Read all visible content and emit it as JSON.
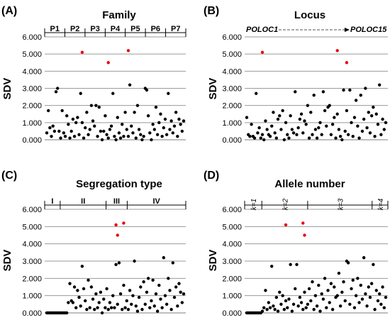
{
  "chart_data": [
    {
      "type": "scatter",
      "panel": "(A)",
      "title": "Family",
      "ylabel": "SDV",
      "ylim": [
        0,
        6
      ],
      "yticks": [
        "0.000",
        "1.000",
        "2.000",
        "3.000",
        "4.000",
        "5.000",
        "6.000"
      ],
      "groups": [
        "P1",
        "P2",
        "P3",
        "P4",
        "P5",
        "P6",
        "P7"
      ],
      "series": [
        {
          "color": "#000000",
          "values": [
            0.4,
            1.7,
            0.7,
            0.2,
            0.8,
            0.5,
            2.8,
            3.0,
            0.5,
            0.1,
            1.7,
            0.4,
            0.2,
            1.4,
            0.9,
            0.1,
            0.5,
            1.2,
            0.2,
            1.0,
            1.3,
            0.3,
            2.7,
            1.0,
            0.1,
            0.7,
            1.6,
            0.3,
            0.6,
            2.0,
            1.1,
            0.8,
            2.0,
            0.2,
            1.9,
            0.5,
            0.0,
            0.5,
            1.4,
            0.3,
            0.1,
            0.6,
            0.8,
            2.7,
            0.2,
            0.0,
            1.3,
            0.4,
            0.1,
            0.9,
            0.2,
            1.6,
            0.6,
            0.2,
            3.2,
            0.8,
            0.4,
            1.6,
            0.1,
            2.0,
            0.6,
            0.3,
            0.0,
            0.2,
            3.0,
            2.9,
            1.4,
            0.4,
            0.0,
            0.9,
            0.6,
            1.9,
            0.3,
            1.0,
            1.5,
            0.2,
            0.7,
            1.2,
            0.3,
            2.7,
            0.6,
            1.1,
            0.4,
            0.8,
            1.6,
            0.2,
            1.2,
            0.9,
            0.5,
            1.1
          ]
        },
        {
          "color": "#e8000b",
          "values": [
            5.1,
            4.5,
            5.2
          ],
          "x_index": [
            23,
            40,
            53
          ]
        }
      ]
    },
    {
      "type": "scatter",
      "panel": "(B)",
      "title": "Locus",
      "ylabel": "SDV",
      "ylim": [
        0,
        6
      ],
      "yticks": [
        "0.000",
        "1.000",
        "2.000",
        "3.000",
        "4.000",
        "5.000",
        "6.000"
      ],
      "locus_start": "POLOC1",
      "locus_end": "POLOC15",
      "series": [
        {
          "color": "#000000",
          "values": [
            1.3,
            0.3,
            0.2,
            0.9,
            0.2,
            0.1,
            2.7,
            0.4,
            0.7,
            0.1,
            0.3,
            0.0,
            1.1,
            0.6,
            0.3,
            0.2,
            0.8,
            1.6,
            0.4,
            0.1,
            1.2,
            1.4,
            0.6,
            1.7,
            0.0,
            1.0,
            0.3,
            0.1,
            1.4,
            0.6,
            0.4,
            2.8,
            0.3,
            0.7,
            1.2,
            1.5,
            0.4,
            1.1,
            0.9,
            2.0,
            0.1,
            1.6,
            0.3,
            2.6,
            0.6,
            0.1,
            0.7,
            1.0,
            0.3,
            2.8,
            1.7,
            0.8,
            1.9,
            2.0,
            0.3,
            0.9,
            1.3,
            0.1,
            1.5,
            0.6,
            0.2,
            0.0,
            2.9,
            0.5,
            1.7,
            0.3,
            2.9,
            1.0,
            0.2,
            1.3,
            2.3,
            0.8,
            0.1,
            2.6,
            0.5,
            1.2,
            3.0,
            0.7,
            1.6,
            0.4,
            1.4,
            1.9,
            0.2,
            1.5,
            0.9,
            3.2,
            0.3,
            1.2,
            0.6,
            1.0
          ]
        },
        {
          "color": "#e8000b",
          "values": [
            5.1,
            5.2,
            4.5
          ],
          "x_index": [
            10,
            58,
            64
          ]
        }
      ]
    },
    {
      "type": "scatter",
      "panel": "(C)",
      "title": "Segregation type",
      "ylabel": "SDV",
      "ylim": [
        0,
        6
      ],
      "yticks": [
        "0.000",
        "1.000",
        "2.000",
        "3.000",
        "4.000",
        "5.000",
        "6.000"
      ],
      "groups": [
        "I",
        "II",
        "III",
        "IV"
      ],
      "series": [
        {
          "color": "#000000",
          "values": [
            0.0,
            0.0,
            0.0,
            0.0,
            0.0,
            0.0,
            0.0,
            0.0,
            0.0,
            0.0,
            0.0,
            0.0,
            0.0,
            0.0,
            0.6,
            1.7,
            0.7,
            0.6,
            1.5,
            0.3,
            1.3,
            0.9,
            0.4,
            2.7,
            1.4,
            0.7,
            0.2,
            1.9,
            0.3,
            1.5,
            0.8,
            0.2,
            1.1,
            0.3,
            0.6,
            1.2,
            0.0,
            0.8,
            0.3,
            1.4,
            0.2,
            0.6,
            0.3,
            1.0,
            0.3,
            2.8,
            0.5,
            2.9,
            1.1,
            0.2,
            1.6,
            0.3,
            0.7,
            0.2,
            1.3,
            0.5,
            1.0,
            3.0,
            0.4,
            0.1,
            0.9,
            1.5,
            0.2,
            1.8,
            0.5,
            1.2,
            2.0,
            0.3,
            0.7,
            1.9,
            0.4,
            1.1,
            0.1,
            1.6,
            0.8,
            0.3,
            3.2,
            1.0,
            0.5,
            2.0,
            1.3,
            0.2,
            2.9,
            0.9,
            1.5,
            0.4,
            1.7,
            1.2,
            0.6,
            1.1
          ]
        },
        {
          "color": "#e8000b",
          "values": [
            5.1,
            4.5,
            5.2
          ],
          "x_index": [
            45,
            46,
            50
          ]
        }
      ]
    },
    {
      "type": "scatter",
      "panel": "(D)",
      "title": "Allele number",
      "ylabel": "SDV",
      "ylim": [
        0,
        6
      ],
      "yticks": [
        "0.000",
        "1.000",
        "2.000",
        "3.000",
        "4.000",
        "5.000",
        "6.000"
      ],
      "groups": [
        "k=1",
        "k=2",
        "k=3",
        "k=4"
      ],
      "series": [
        {
          "color": "#000000",
          "values": [
            0.0,
            0.0,
            0.0,
            0.0,
            0.0,
            0.0,
            0.0,
            0.0,
            0.0,
            0.0,
            0.1,
            0.3,
            1.3,
            0.2,
            0.6,
            0.3,
            2.7,
            0.4,
            0.2,
            0.9,
            0.1,
            1.2,
            0.5,
            1.0,
            0.2,
            0.7,
            0.3,
            0.8,
            2.8,
            0.1,
            0.5,
            1.4,
            2.8,
            0.4,
            0.9,
            0.6,
            0.2,
            1.2,
            0.3,
            0.5,
            1.4,
            0.7,
            1.8,
            0.2,
            1.0,
            0.4,
            1.6,
            0.1,
            1.1,
            0.8,
            2.0,
            0.3,
            1.3,
            0.6,
            1.7,
            0.2,
            1.5,
            0.9,
            1.0,
            2.3,
            0.4,
            1.2,
            1.8,
            0.7,
            3.0,
            2.9,
            0.5,
            1.4,
            1.9,
            0.3,
            1.0,
            2.0,
            0.6,
            1.6,
            0.8,
            3.2,
            1.1,
            0.4,
            1.5,
            0.9,
            1.7,
            2.8,
            0.2,
            1.3,
            0.7,
            1.1,
            0.5,
            1.5,
            0.3,
            0.9
          ]
        },
        {
          "color": "#e8000b",
          "values": [
            5.1,
            5.2,
            4.5
          ],
          "x_index": [
            25,
            36,
            37
          ]
        }
      ]
    }
  ]
}
